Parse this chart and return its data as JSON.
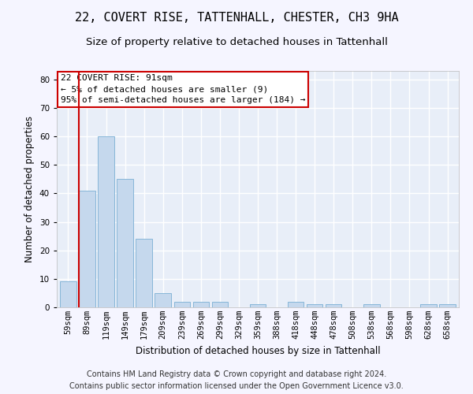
{
  "title": "22, COVERT RISE, TATTENHALL, CHESTER, CH3 9HA",
  "subtitle": "Size of property relative to detached houses in Tattenhall",
  "xlabel": "Distribution of detached houses by size in Tattenhall",
  "ylabel": "Number of detached properties",
  "bar_labels": [
    "59sqm",
    "89sqm",
    "119sqm",
    "149sqm",
    "179sqm",
    "209sqm",
    "239sqm",
    "269sqm",
    "299sqm",
    "329sqm",
    "359sqm",
    "388sqm",
    "418sqm",
    "448sqm",
    "478sqm",
    "508sqm",
    "538sqm",
    "568sqm",
    "598sqm",
    "628sqm",
    "658sqm"
  ],
  "bar_values": [
    9,
    41,
    60,
    45,
    24,
    5,
    2,
    2,
    2,
    0,
    1,
    0,
    2,
    1,
    1,
    0,
    1,
    0,
    0,
    1,
    1
  ],
  "bar_color": "#c5d8ed",
  "bar_edge_color": "#7aafd4",
  "marker_color": "#cc0000",
  "ylim": [
    0,
    83
  ],
  "yticks": [
    0,
    10,
    20,
    30,
    40,
    50,
    60,
    70,
    80
  ],
  "annotation_title": "22 COVERT RISE: 91sqm",
  "annotation_line1": "← 5% of detached houses are smaller (9)",
  "annotation_line2": "95% of semi-detached houses are larger (184) →",
  "annotation_box_color": "#ffffff",
  "annotation_box_edge": "#cc0000",
  "footer_line1": "Contains HM Land Registry data © Crown copyright and database right 2024.",
  "footer_line2": "Contains public sector information licensed under the Open Government Licence v3.0.",
  "bg_color": "#e8eef8",
  "grid_color": "#ffffff",
  "fig_bg_color": "#f5f5ff",
  "title_fontsize": 11,
  "subtitle_fontsize": 9.5,
  "axis_label_fontsize": 8.5,
  "tick_fontsize": 7.5,
  "annotation_fontsize": 8,
  "footer_fontsize": 7
}
